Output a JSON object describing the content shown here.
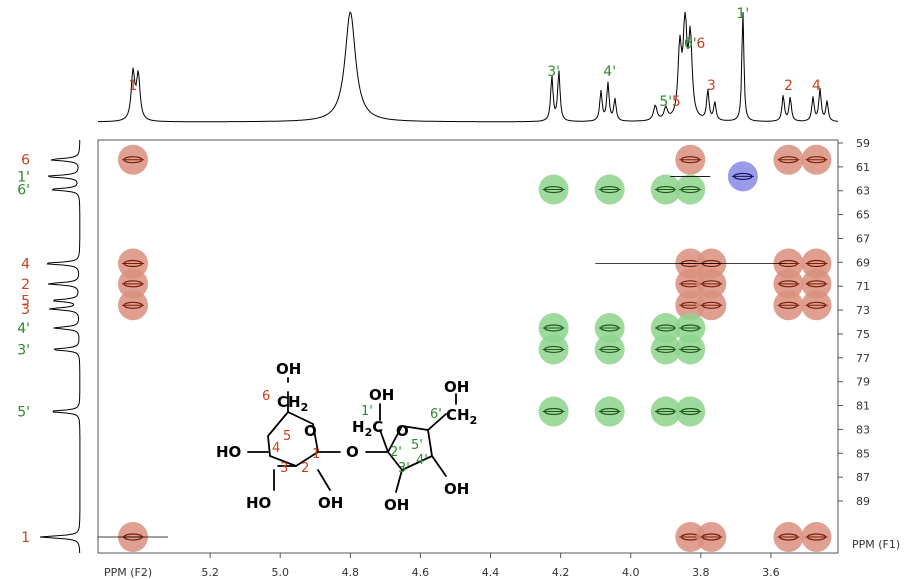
{
  "chart_data": {
    "type": "scatter",
    "title": "",
    "xlabel": "PPM (F2)",
    "ylabel": "PPM (F1)",
    "xlim": [
      5.58,
      3.39
    ],
    "ylim": [
      92.8,
      59
    ],
    "x_ticks": [
      "5.2",
      "5.0",
      "4.8",
      "4.6",
      "4.4",
      "4.2",
      "4.0",
      "3.8",
      "3.6"
    ],
    "y_ticks": [
      "59",
      "61",
      "63",
      "65",
      "67",
      "69",
      "71",
      "73",
      "75",
      "77",
      "79",
      "81",
      "83",
      "85",
      "87",
      "89"
    ],
    "colors": {
      "glucose": "#c8401a",
      "fructose": "#2e8b2e",
      "glucose_peak": "#d98f7e",
      "fructose_peak": "#8dd48d",
      "overlap_peak": "#8888e8"
    },
    "proton_labels": [
      {
        "label": "1",
        "x": 5.42,
        "color": "glucose"
      },
      {
        "label": "3'",
        "x": 4.22,
        "color": "fructose"
      },
      {
        "label": "4'",
        "x": 4.06,
        "color": "fructose"
      },
      {
        "label": "5'",
        "x": 3.9,
        "color": "fructose"
      },
      {
        "label": "5",
        "x": 3.87,
        "color": "glucose"
      },
      {
        "label": "6'",
        "x": 3.83,
        "color": "fructose"
      },
      {
        "label": "6",
        "x": 3.8,
        "color": "glucose"
      },
      {
        "label": "3",
        "x": 3.77,
        "color": "glucose"
      },
      {
        "label": "1'",
        "x": 3.68,
        "color": "fructose"
      },
      {
        "label": "2",
        "x": 3.55,
        "color": "glucose"
      },
      {
        "label": "4",
        "x": 3.47,
        "color": "glucose"
      }
    ],
    "carbon_labels": [
      {
        "label": "6",
        "y": 60.4,
        "color": "glucose"
      },
      {
        "label": "1'",
        "y": 61.8,
        "color": "fructose"
      },
      {
        "label": "6'",
        "y": 62.9,
        "color": "fructose"
      },
      {
        "label": "4",
        "y": 69.1,
        "color": "glucose"
      },
      {
        "label": "2",
        "y": 70.8,
        "color": "glucose"
      },
      {
        "label": "5",
        "y": 72.2,
        "color": "glucose"
      },
      {
        "label": "3",
        "y": 72.9,
        "color": "glucose"
      },
      {
        "label": "4'",
        "y": 74.5,
        "color": "fructose"
      },
      {
        "label": "3'",
        "y": 76.3,
        "color": "fructose"
      },
      {
        "label": "5'",
        "y": 81.5,
        "color": "fructose"
      },
      {
        "label": "1",
        "y": 92.8,
        "color": "glucose"
      }
    ],
    "series": [
      {
        "name": "glucose",
        "points": [
          [
            5.42,
            60.4
          ],
          [
            5.42,
            69.1
          ],
          [
            5.42,
            70.8
          ],
          [
            5.42,
            72.6
          ],
          [
            5.42,
            92.8
          ],
          [
            3.83,
            60.4
          ],
          [
            3.55,
            60.4
          ],
          [
            3.47,
            60.4
          ],
          [
            3.83,
            69.1
          ],
          [
            3.77,
            69.1
          ],
          [
            3.55,
            69.1
          ],
          [
            3.47,
            69.1
          ],
          [
            3.83,
            70.8
          ],
          [
            3.77,
            70.8
          ],
          [
            3.55,
            70.8
          ],
          [
            3.47,
            70.8
          ],
          [
            3.83,
            72.6
          ],
          [
            3.77,
            72.6
          ],
          [
            3.55,
            72.6
          ],
          [
            3.47,
            72.6
          ],
          [
            3.83,
            92.8
          ],
          [
            3.77,
            92.8
          ],
          [
            3.55,
            92.8
          ],
          [
            3.47,
            92.8
          ]
        ]
      },
      {
        "name": "fructose",
        "points": [
          [
            4.22,
            62.9
          ],
          [
            4.06,
            62.9
          ],
          [
            3.9,
            62.9
          ],
          [
            3.83,
            62.9
          ],
          [
            4.22,
            74.5
          ],
          [
            4.06,
            74.5
          ],
          [
            3.9,
            74.5
          ],
          [
            3.83,
            74.5
          ],
          [
            4.22,
            76.3
          ],
          [
            4.06,
            76.3
          ],
          [
            3.9,
            76.3
          ],
          [
            3.83,
            76.3
          ],
          [
            4.22,
            81.5
          ],
          [
            4.06,
            81.5
          ],
          [
            3.9,
            81.5
          ],
          [
            3.83,
            81.5
          ]
        ]
      },
      {
        "name": "overlap",
        "points": [
          [
            3.68,
            61.8
          ]
        ]
      }
    ]
  },
  "structure": {
    "glucose_numbers": [
      "1",
      "2",
      "3",
      "4",
      "5",
      "6"
    ],
    "fructose_numbers": [
      "1'",
      "2'",
      "3'",
      "4'",
      "5'",
      "6'"
    ],
    "atoms": {
      "oh_g6": "OH",
      "ch2_g6": "CH",
      "ch2_sub": "2",
      "o_ring_g": "O",
      "ho_g4": "HO",
      "ho_g3": "HO",
      "oh_g2": "OH",
      "o_link": "O",
      "oh_f1": "OH",
      "h2c_f1": "H",
      "h2c_sub": "2",
      "h2c_c": "C",
      "o_ring_f": "O",
      "oh_f6": "OH",
      "ch2_f6": "CH",
      "ch2_f6_sub": "2",
      "oh_f3": "OH",
      "oh_f4": "OH"
    }
  }
}
